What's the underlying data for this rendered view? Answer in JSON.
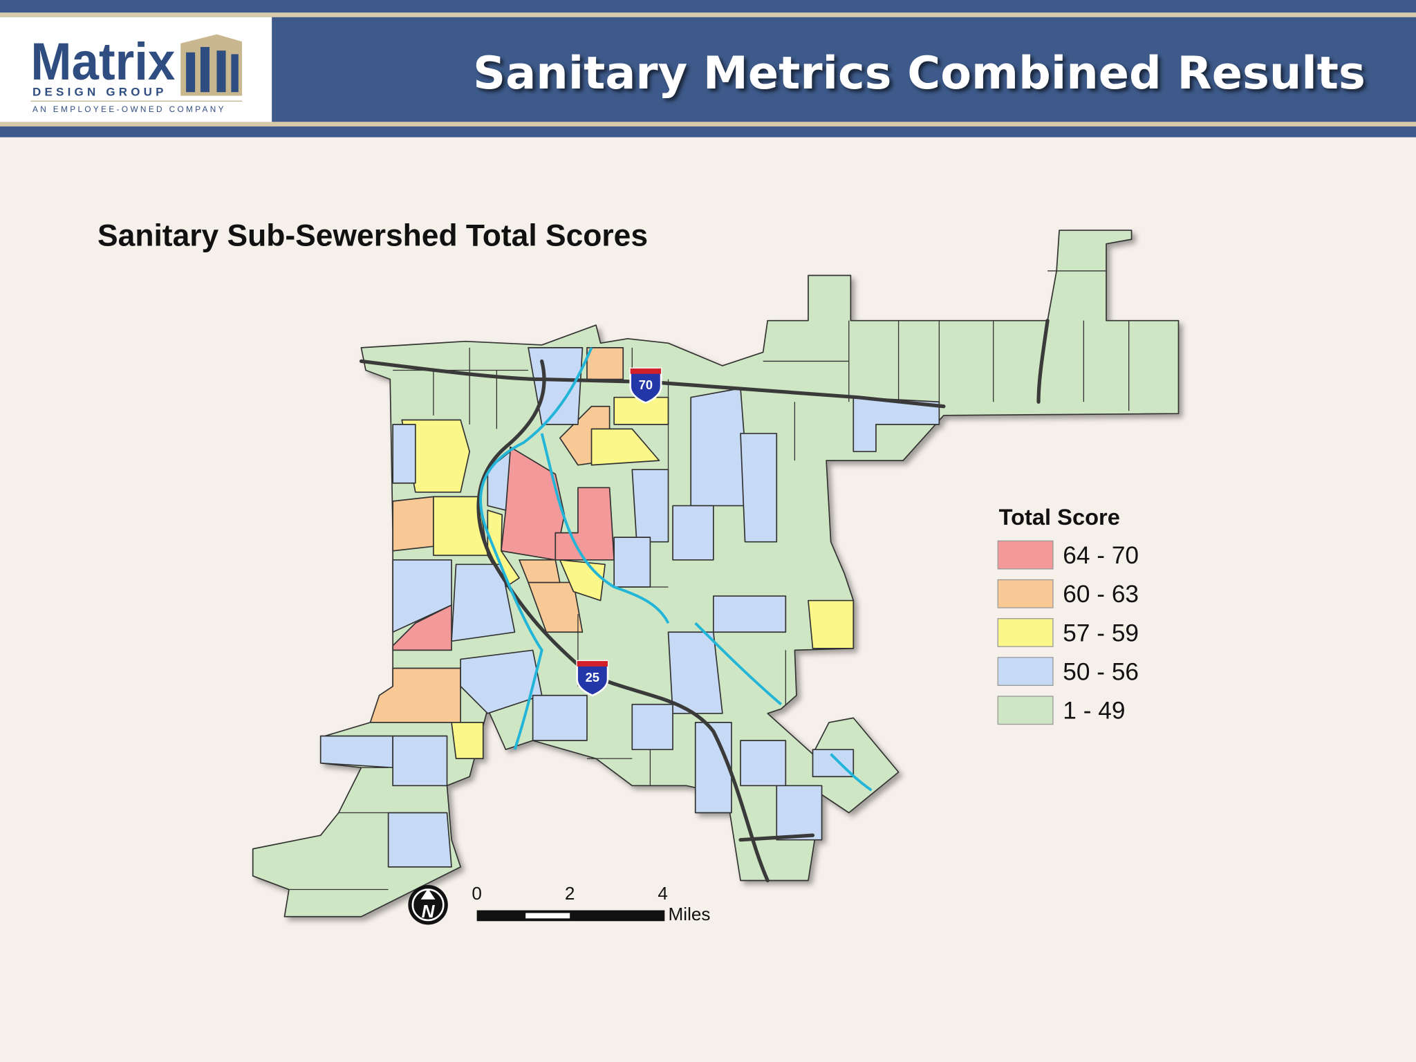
{
  "header": {
    "title": "Sanitary Metrics Combined Results",
    "logo": {
      "name": "Matrix",
      "subtitle": "DESIGN GROUP",
      "tagline": "AN EMPLOYEE-OWNED COMPANY"
    }
  },
  "map": {
    "title": "Sanitary Sub-Sewershed Total Scores",
    "highways": [
      "70",
      "25"
    ],
    "north_arrow": "N",
    "scale_bar": {
      "labels": [
        "0",
        "2",
        "4"
      ],
      "unit": "Miles"
    },
    "legend": {
      "title": "Total Score",
      "items": [
        {
          "label": "64 - 70",
          "color": "#f3999a"
        },
        {
          "label": "60 - 63",
          "color": "#f8c994"
        },
        {
          "label": "57 - 59",
          "color": "#fbf789"
        },
        {
          "label": "50 - 56",
          "color": "#c6daf6"
        },
        {
          "label": "1 - 49",
          "color": "#cfe6c4"
        }
      ]
    }
  }
}
